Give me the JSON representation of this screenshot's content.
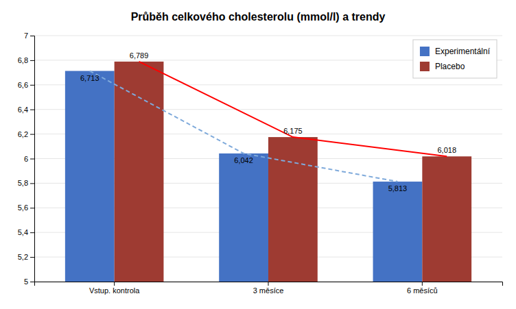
{
  "chart_data": {
    "type": "bar",
    "title": "Průběh celkového cholesterolu (mmol/l) a trendy",
    "categories": [
      "Vstup. kontrola",
      "3 měsíce",
      "6 měsíců"
    ],
    "series": [
      {
        "name": "Experimentální",
        "color": "#4472C4",
        "values": [
          6.713,
          6.042,
          5.813
        ],
        "value_labels": [
          "6,713",
          "6,042",
          "5,813"
        ]
      },
      {
        "name": "Placebo",
        "color": "#9E3B32",
        "values": [
          6.789,
          6.175,
          6.018
        ],
        "value_labels": [
          "6,789",
          "6,175",
          "6,018"
        ]
      },
      {
        "type": "line",
        "color": "#7FAADB",
        "line_style": "dashed",
        "values": [
          6.713,
          6.042,
          5.813
        ]
      },
      {
        "type": "line",
        "color": "#FF0000",
        "line_style": "solid",
        "values": [
          6.789,
          6.175,
          6.018
        ]
      }
    ],
    "ylim": [
      5,
      7
    ],
    "yticks": [
      5,
      {
        "value": 5.2,
        "label": "5,2"
      },
      {
        "value": 5.4,
        "label": "5,4"
      },
      {
        "value": 5.6,
        "label": "5,6"
      },
      {
        "value": 5.8,
        "label": "5,8"
      },
      6,
      {
        "value": 6.2,
        "label": "6,2"
      },
      {
        "value": 6.4,
        "label": "6,4"
      },
      {
        "value": 6.6,
        "label": "6,6"
      },
      {
        "value": 6.8,
        "label": "6,8"
      },
      7
    ],
    "grid": true,
    "legend": "upper right",
    "data_labels": true
  }
}
